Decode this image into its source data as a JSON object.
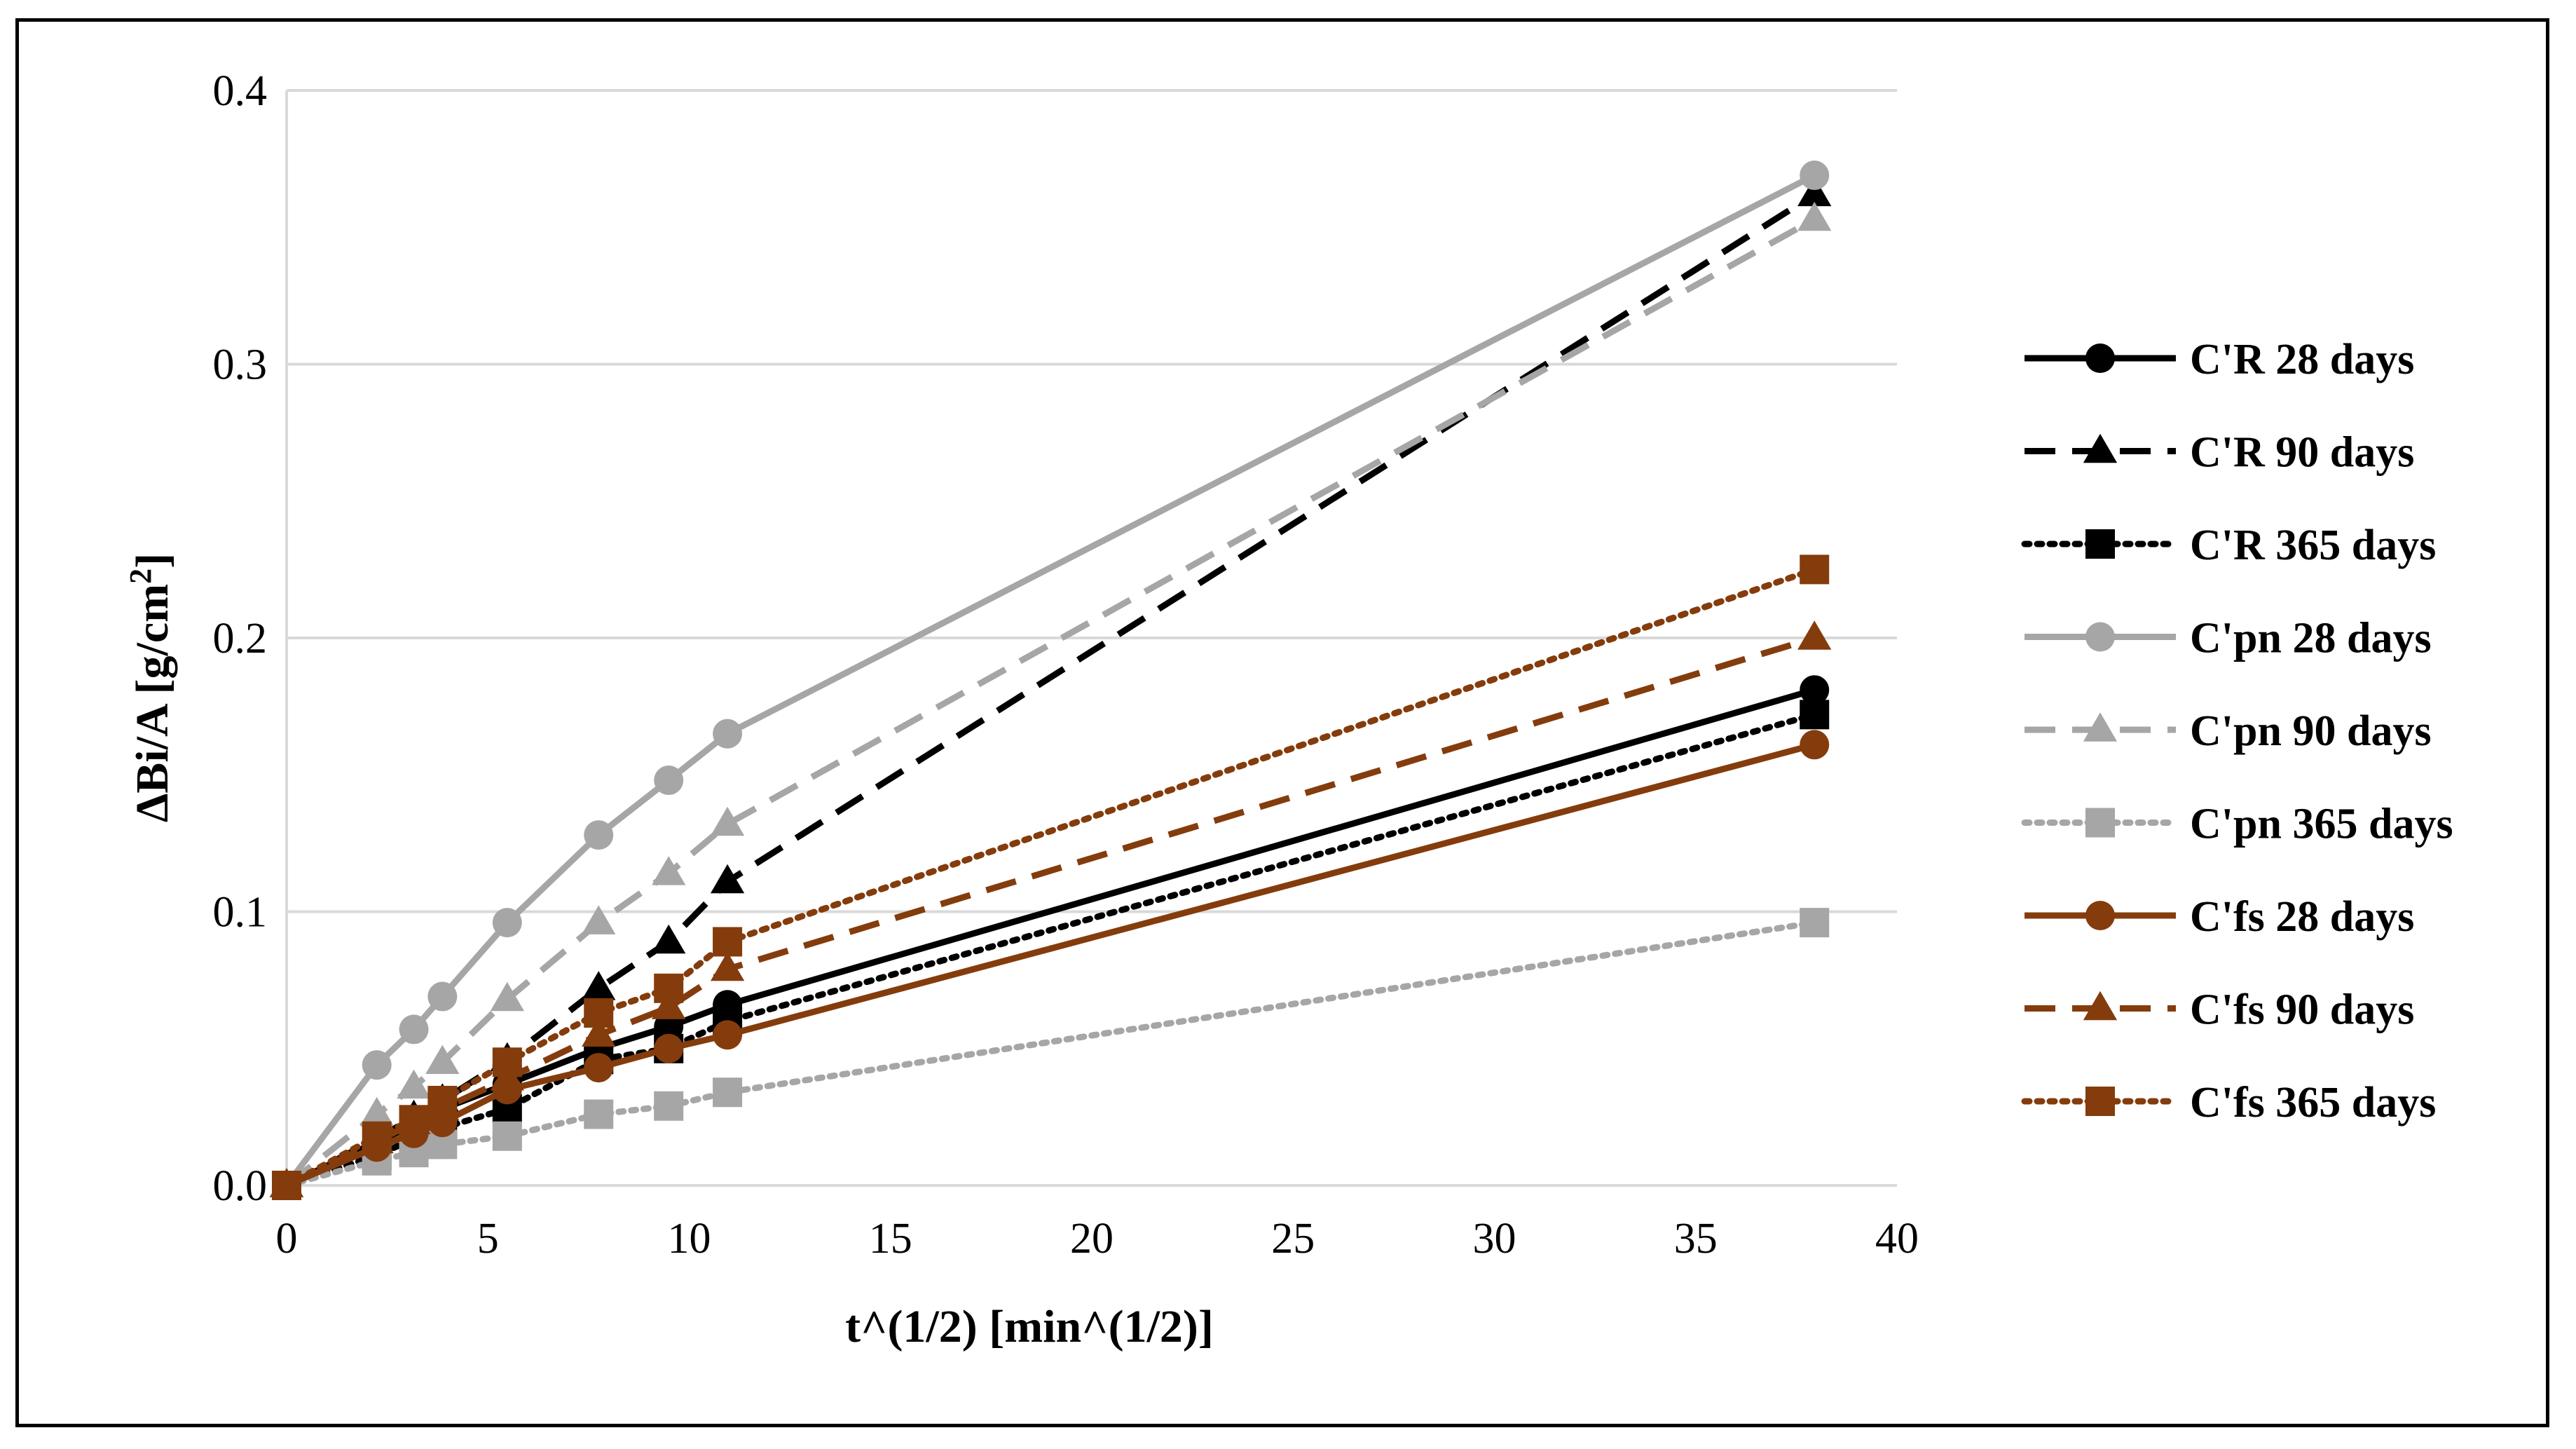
{
  "chart_data": {
    "type": "line",
    "title": "",
    "xlabel": "t^(1/2) [min^(1/2)]",
    "ylabel_main": "ΔBi/A [g/cm",
    "ylabel_sup": "2",
    "ylabel_end": "]",
    "xlim": [
      0,
      40
    ],
    "ylim": [
      0,
      0.4
    ],
    "xticks": [
      0,
      5,
      10,
      15,
      20,
      25,
      30,
      35,
      40
    ],
    "xtick_labels": [
      "0",
      "5",
      "10",
      "15",
      "20",
      "25",
      "30",
      "35",
      "40"
    ],
    "yticks": [
      0,
      0.1,
      0.2,
      0.3,
      0.4
    ],
    "ytick_labels": [
      "0.0",
      "0.1",
      "0.2",
      "0.3",
      "0.4"
    ],
    "grid": "horizontal",
    "legend_position": "right",
    "x": [
      0,
      2.24,
      3.16,
      3.87,
      5.48,
      7.75,
      9.49,
      10.95,
      37.95
    ],
    "series": [
      {
        "name": "C'R 28 days",
        "color": "#000000",
        "dash": "solid",
        "marker": "circle",
        "values": [
          0,
          0.016,
          0.022,
          0.028,
          0.037,
          0.05,
          0.058,
          0.066,
          0.181
        ]
      },
      {
        "name": "C'R 90 days",
        "color": "#000000",
        "dash": "dashed",
        "marker": "triangle",
        "values": [
          0,
          0.017,
          0.025,
          0.031,
          0.046,
          0.072,
          0.089,
          0.111,
          0.362
        ]
      },
      {
        "name": "C'R 365 days",
        "color": "#000000",
        "dash": "dotted",
        "marker": "square",
        "values": [
          0,
          0.011,
          0.017,
          0.021,
          0.028,
          0.046,
          0.05,
          0.06,
          0.172
        ]
      },
      {
        "name": "C'pn 28 days",
        "color": "#a6a6a6",
        "dash": "solid",
        "marker": "circle",
        "values": [
          0,
          0.044,
          0.057,
          0.069,
          0.096,
          0.128,
          0.148,
          0.165,
          0.369
        ]
      },
      {
        "name": "C'pn 90 days",
        "color": "#a6a6a6",
        "dash": "dashed",
        "marker": "triangle",
        "values": [
          0,
          0.026,
          0.036,
          0.045,
          0.068,
          0.096,
          0.114,
          0.132,
          0.353
        ]
      },
      {
        "name": "C'pn 365 days",
        "color": "#a6a6a6",
        "dash": "dotted",
        "marker": "square",
        "values": [
          0,
          0.009,
          0.012,
          0.015,
          0.018,
          0.026,
          0.029,
          0.034,
          0.096
        ]
      },
      {
        "name": "C'fs 28 days",
        "color": "#843c0c",
        "dash": "solid",
        "marker": "circle",
        "values": [
          0,
          0.014,
          0.019,
          0.023,
          0.035,
          0.043,
          0.05,
          0.055,
          0.161
        ]
      },
      {
        "name": "C'fs 90 days",
        "color": "#843c0c",
        "dash": "dashed",
        "marker": "triangle",
        "values": [
          0,
          0.016,
          0.023,
          0.028,
          0.039,
          0.055,
          0.065,
          0.079,
          0.2
        ]
      },
      {
        "name": "C'fs 365 days",
        "color": "#843c0c",
        "dash": "dotted",
        "marker": "square",
        "values": [
          0,
          0.018,
          0.024,
          0.031,
          0.045,
          0.063,
          0.072,
          0.089,
          0.225
        ]
      }
    ]
  }
}
